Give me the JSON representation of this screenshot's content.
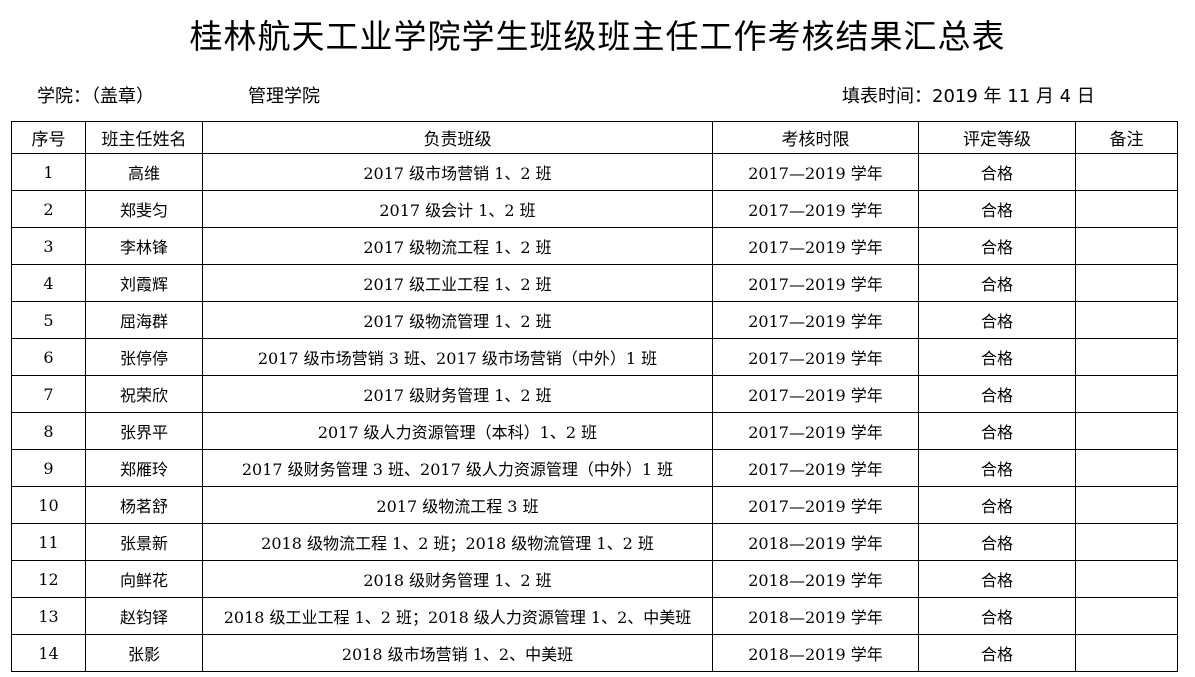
{
  "title": "桂林航天工业学院学生班级班主任工作考核结果汇总表",
  "college_label": "学院：（盖章）",
  "college_name": "管理学院",
  "fill_date": "填表时间：2019 年 11 月 4 日",
  "headers": [
    "序号",
    "班主任姓名",
    "负责班级",
    "考核时限",
    "评定等级",
    "备注"
  ],
  "rows": [
    [
      "1",
      "高维",
      "2017 级市场营销 1、2 班",
      "2017—2019 学年",
      "合格",
      ""
    ],
    [
      "2",
      "郑斐匀",
      "2017 级会计 1、2 班",
      "2017—2019 学年",
      "合格",
      ""
    ],
    [
      "3",
      "李林锋",
      "2017 级物流工程 1、2 班",
      "2017—2019 学年",
      "合格",
      ""
    ],
    [
      "4",
      "刘霞辉",
      "2017 级工业工程 1、2 班",
      "2017—2019 学年",
      "合格",
      ""
    ],
    [
      "5",
      "屈海群",
      "2017 级物流管理 1、2 班",
      "2017—2019 学年",
      "合格",
      ""
    ],
    [
      "6",
      "张停停",
      "2017 级市场营销 3 班、2017 级市场营销（中外）1 班",
      "2017—2019 学年",
      "合格",
      ""
    ],
    [
      "7",
      "祝荣欣",
      "2017 级财务管理 1、2 班",
      "2017—2019 学年",
      "合格",
      ""
    ],
    [
      "8",
      "张界平",
      "2017 级人力资源管理（本科）1、2 班",
      "2017—2019 学年",
      "合格",
      ""
    ],
    [
      "9",
      "郑雁玲",
      "2017 级财务管理 3 班、2017 级人力资源管理（中外）1 班",
      "2017—2019 学年",
      "合格",
      ""
    ],
    [
      "10",
      "杨茗舒",
      "2017 级物流工程 3 班",
      "2017—2019 学年",
      "合格",
      ""
    ],
    [
      "11",
      "张景新",
      "2018 级物流工程 1、2 班；2018 级物流管理 1、2 班",
      "2018—2019 学年",
      "合格",
      ""
    ],
    [
      "12",
      "向鲜花",
      "2018 级财务管理 1、2 班",
      "2018—2019 学年",
      "合格",
      ""
    ],
    [
      "13",
      "赵钧铎",
      "2018 级工业工程 1、2 班；2018 级人力资源管理 1、2、中美班",
      "2018—2019 学年",
      "合格",
      ""
    ],
    [
      "14",
      "张影",
      "2018 级市场营销 1、2、中美班",
      "2018—2019 学年",
      "合格",
      ""
    ]
  ]
}
